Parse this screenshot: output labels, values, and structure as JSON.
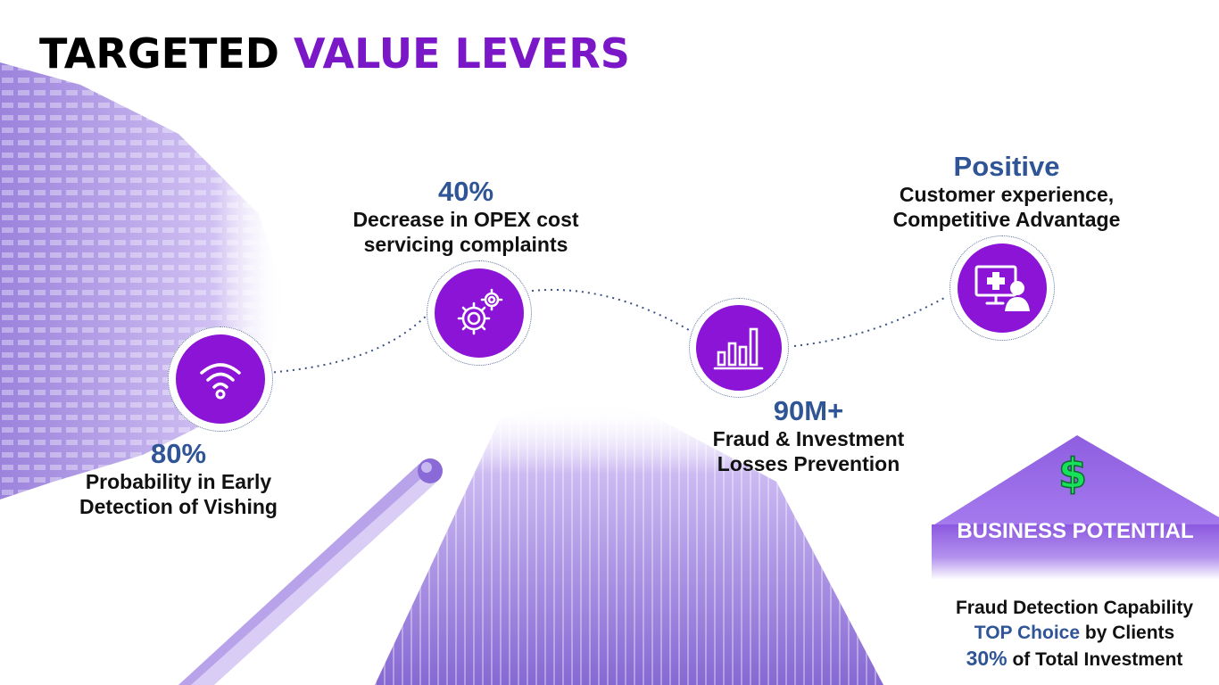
{
  "title": {
    "part1": "TARGETED",
    "part2": "VALUE LEVERS"
  },
  "colors": {
    "accent": "#8b14d6",
    "title_purple": "#7a18c8",
    "stat_blue": "#2f5597",
    "dollar_green": "#18e05a"
  },
  "levers": [
    {
      "value": "80%",
      "line1": "Probability in Early",
      "line2": "Detection of Vishing",
      "icon": "wifi-signal-icon"
    },
    {
      "value": "40%",
      "line1": "Decrease in OPEX cost",
      "line2": "servicing complaints",
      "icon": "gears-icon"
    },
    {
      "value": "90M+",
      "line1": "Fraud & Investment",
      "line2": "Losses Prevention",
      "icon": "bar-chart-icon"
    },
    {
      "value": "Positive",
      "line1": "Customer experience,",
      "line2": "Competitive Advantage",
      "icon": "monitor-medical-user-icon"
    }
  ],
  "business": {
    "icon": "dollar-sign-icon",
    "label": "BUSINESS POTENTIAL",
    "line1": "Fraud Detection Capability",
    "line2_highlight": "TOP Choice",
    "line2_rest": " by Clients",
    "line3_highlight": "30%",
    "line3_rest": " of Total Investment"
  }
}
